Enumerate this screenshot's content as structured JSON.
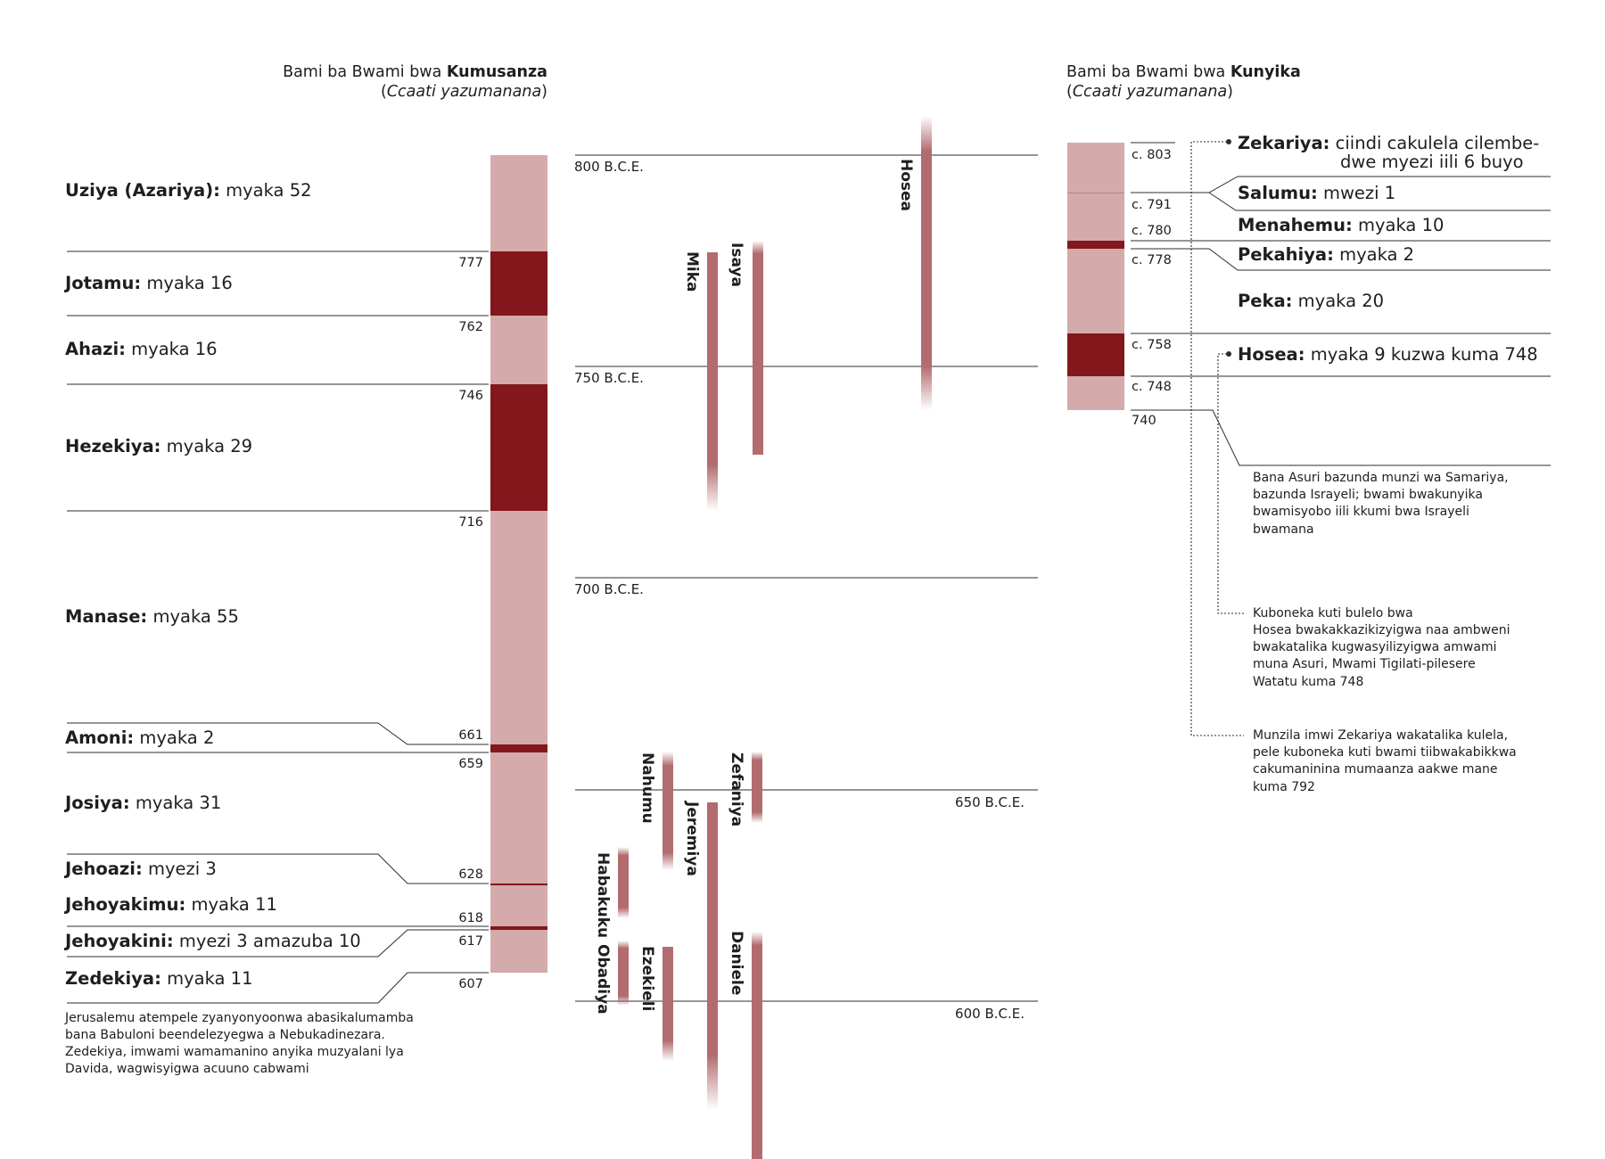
{
  "judah": {
    "header": {
      "title": "Bami ba Bwami bwa ",
      "title_bold": "Kumusanza",
      "subtitle": "Ccaati yazumanana"
    },
    "kings": [
      {
        "name": "Uziya (Azariya):",
        "reign": "myaka 52"
      },
      {
        "name": "Jotamu:",
        "reign": "myaka 16"
      },
      {
        "name": "Ahazi:",
        "reign": "myaka 16"
      },
      {
        "name": "Hezekiya:",
        "reign": "myaka 29"
      },
      {
        "name": "Manase:",
        "reign": "myaka 55"
      },
      {
        "name": "Amoni:",
        "reign": "myaka 2"
      },
      {
        "name": "Josiya:",
        "reign": "myaka 31"
      },
      {
        "name": "Jehoazi:",
        "reign": "myezi 3"
      },
      {
        "name": "Jehoyakimu:",
        "reign": "myaka 11"
      },
      {
        "name": "Jehoyakini:",
        "reign": "myezi 3 amazuba 10"
      },
      {
        "name": "Zedekiya:",
        "reign": "myaka 11"
      }
    ],
    "years": [
      "777",
      "762",
      "746",
      "716",
      "661",
      "659",
      "628",
      "618",
      "617",
      "607"
    ],
    "note": [
      "Jerusalemu atempele zyanyonyoonwa abasikalumamba",
      "bana Babuloni beendelezyegwa a Nebukadinezara.",
      "Zedekiya, imwami wamamanino anyika muzyalani lya",
      "Davida, wagwisyigwa acuuno cabwami"
    ]
  },
  "eras": [
    "800 B.C.E.",
    "750 B.C.E.",
    "700 B.C.E.",
    "650 B.C.E.",
    "600 B.C.E."
  ],
  "prophets": [
    "Hosea",
    "Isaya",
    "Mika",
    "Nahumu",
    "Zefaniya",
    "Jeremiya",
    "Habakuku",
    "Obadiya",
    "Ezekieli",
    "Daniele"
  ],
  "israel": {
    "header": {
      "title": "Bami ba Bwami bwa ",
      "title_bold": "Kunyika",
      "subtitle": "Ccaati yazumanana"
    },
    "years": [
      "c. 803",
      "c. 791",
      "c. 780",
      "c. 778",
      "c. 758",
      "c. 748",
      "740"
    ],
    "kings": [
      {
        "name": "Zekariya:",
        "reign": "ciindi cakulela cilembe-",
        "reign2": "dwe myezi iili 6 buyo"
      },
      {
        "name": "Salumu:",
        "reign": "mwezi 1"
      },
      {
        "name": "Menahemu:",
        "reign": "myaka 10"
      },
      {
        "name": "Pekahiya:",
        "reign": "myaka 2"
      },
      {
        "name": "Peka:",
        "reign": "myaka 20"
      },
      {
        "name": "Hosea:",
        "reign": "myaka 9 kuzwa kuma 748"
      }
    ],
    "notes": [
      [
        "Bana Asuri bazunda munzi wa Samariya,",
        "bazunda Israyeli; bwami bwakunyika",
        "bwamisyobo iili kkumi bwa Israyeli",
        "bwamana"
      ],
      [
        "Kuboneka kuti bulelo bwa",
        "Hosea bwakakkazikizyigwa naa ambweni",
        "bwakatalika kugwasyilizyigwa amwami",
        "muna Asuri, Mwami Tigilati-pilesere",
        "Watatu kuma 748"
      ],
      [
        "Munzila imwi Zekariya wakatalika kulela,",
        "pele kuboneka kuti bwami tiibwakabikkwa",
        "cakumaninina mumaanza aakwe mane",
        "kuma 792"
      ]
    ]
  },
  "colors": {
    "light": "#d4abaa",
    "dark": "#83171b",
    "prophet": "#b26b6f",
    "line": "#2c2c2c"
  }
}
